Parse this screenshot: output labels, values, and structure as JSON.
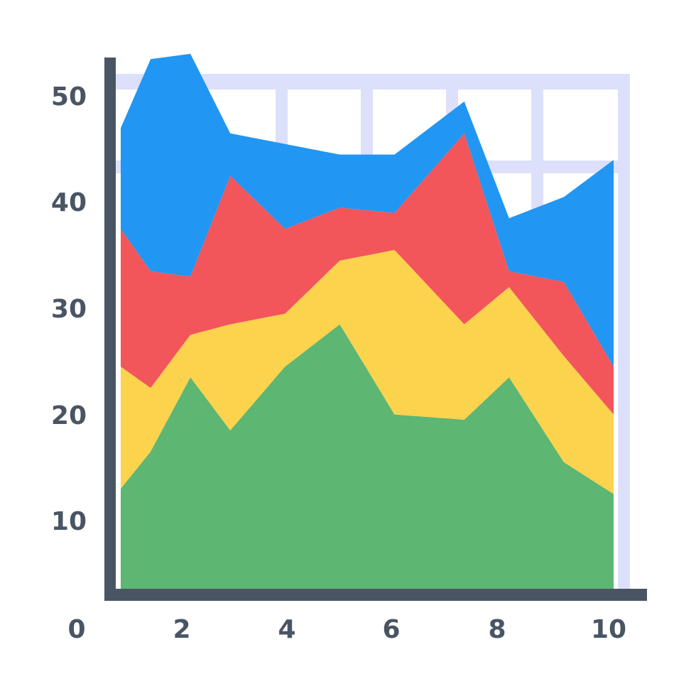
{
  "chart_data": {
    "type": "area",
    "stacked": true,
    "x": [
      0.1,
      0.7,
      1.5,
      2.3,
      3.4,
      4.5,
      5.6,
      7.0,
      7.9,
      9.0,
      10.0
    ],
    "series": [
      {
        "color": "#5db672",
        "values": [
          9.5,
          13,
          20,
          15,
          21,
          25,
          16.5,
          16,
          20,
          12,
          9
        ]
      },
      {
        "color": "#fcd34d",
        "values": [
          11.5,
          6,
          4,
          10,
          5,
          6,
          15.5,
          9,
          8.5,
          10,
          7.5
        ]
      },
      {
        "color": "#f2565b",
        "values": [
          13,
          11,
          5.5,
          14,
          8,
          5,
          3.5,
          18,
          1.5,
          7,
          4.5
        ]
      },
      {
        "color": "#2196f3",
        "values": [
          9.5,
          20,
          21,
          4,
          8,
          5,
          5.5,
          3,
          5,
          8,
          19.5
        ]
      }
    ],
    "x_ticks": [
      "0",
      "2",
      "4",
      "6",
      "8",
      "10"
    ],
    "y_ticks": [
      "10",
      "20",
      "30",
      "40",
      "50"
    ],
    "xlim": [
      0,
      10.2
    ],
    "ylim": [
      4,
      51
    ],
    "grid": true,
    "grid_color": "#dde0fa",
    "axis_color": "#4a5563"
  }
}
